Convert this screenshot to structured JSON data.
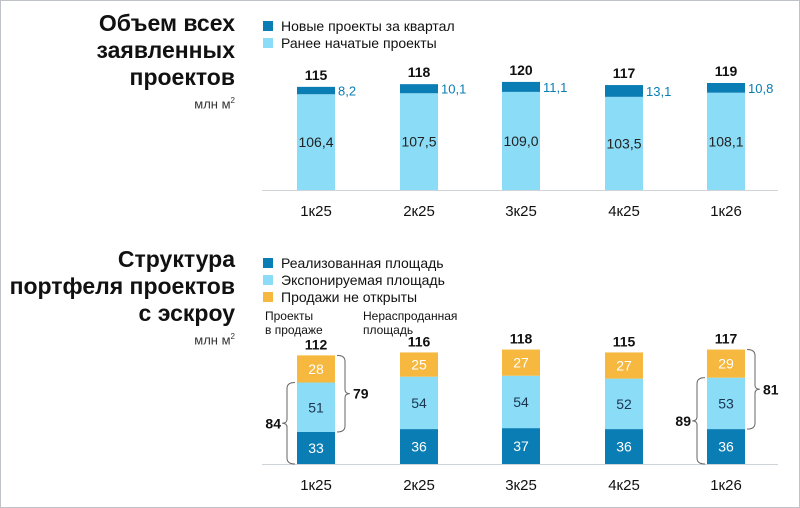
{
  "colors": {
    "dark": "#0a7db4",
    "light": "#8bdcf7",
    "orange": "#f6b83e"
  },
  "top": {
    "title": "Объем всех\nзаявленных\nпроектов",
    "unit": "млн м",
    "unit_sup": "2",
    "legend": [
      "Новые проекты за квартал",
      "Ранее начатые проекты"
    ]
  },
  "bottom": {
    "title": "Структура\nпортфеля проектов\nс эскроу",
    "unit": "млн м",
    "unit_sup": "2",
    "legend": [
      "Реализованная площадь",
      "Экспонируемая площадь",
      "Продажи не открыты"
    ],
    "note_on_sale": "Проекты\nв продаже",
    "note_unsold": "Нераспроданная\nплощадь"
  },
  "chart_data": [
    {
      "type": "bar",
      "stacked": true,
      "categories": [
        "1к25",
        "2к25",
        "3к25",
        "4к25",
        "1к26"
      ],
      "series": [
        {
          "name": "Ранее начатые проекты",
          "values": [
            106.4,
            107.5,
            109.0,
            103.5,
            108.1
          ],
          "labels": [
            "106,4",
            "107,5",
            "109,0",
            "103,5",
            "108,1"
          ]
        },
        {
          "name": "Новые проекты за квартал",
          "values": [
            8.2,
            10.1,
            11.1,
            13.1,
            10.8
          ],
          "labels": [
            "8,2",
            "10,1",
            "11,1",
            "13,1",
            "10,8"
          ]
        }
      ],
      "totals": [
        115,
        118,
        120,
        117,
        119
      ],
      "ylim": [
        0,
        125
      ]
    },
    {
      "type": "bar",
      "stacked": true,
      "categories": [
        "1к25",
        "2к25",
        "3к25",
        "4к25",
        "1к26"
      ],
      "series": [
        {
          "name": "Реализованная площадь",
          "values": [
            33,
            36,
            37,
            36,
            36
          ]
        },
        {
          "name": "Экспонируемая площадь",
          "values": [
            51,
            54,
            54,
            52,
            53
          ]
        },
        {
          "name": "Продажи не открыты",
          "values": [
            28,
            25,
            27,
            27,
            29
          ]
        }
      ],
      "totals": [
        112,
        116,
        118,
        115,
        117
      ],
      "annotations": [
        {
          "category": "1к25",
          "on_sale": 84,
          "unsold": 79
        },
        {
          "category": "1к26",
          "on_sale": 89,
          "unsold": 81
        }
      ],
      "ylim": [
        0,
        125
      ]
    }
  ]
}
